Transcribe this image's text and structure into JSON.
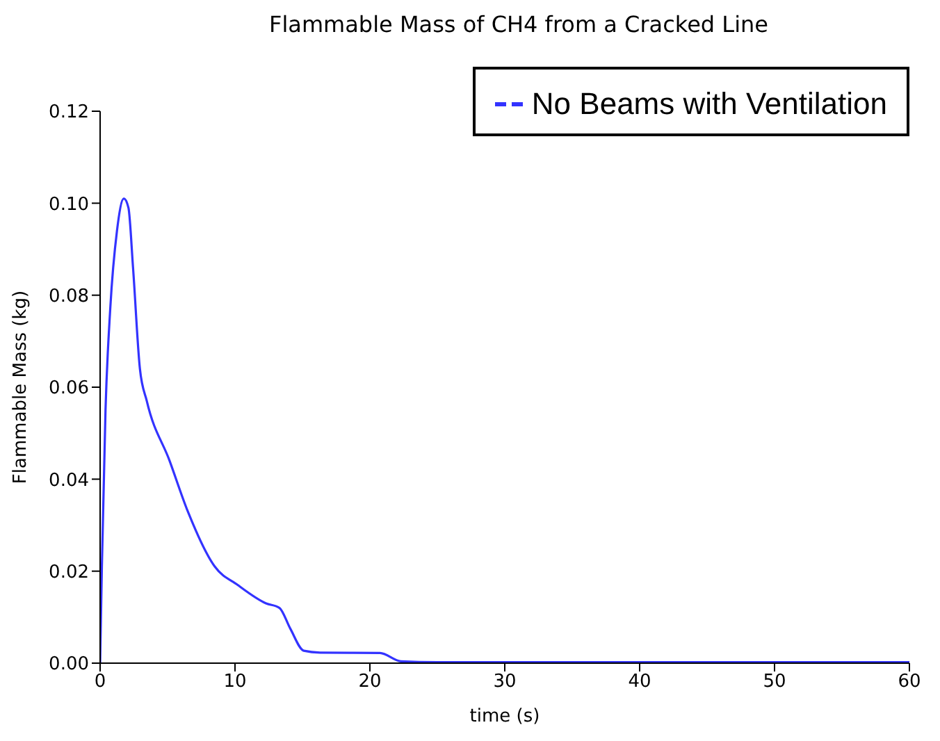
{
  "chart_data": {
    "type": "line",
    "title": "Flammable Mass of CH4 from a Cracked Line",
    "xlabel": "time (s)",
    "ylabel": "Flammable Mass (kg)",
    "x": [
      0,
      0.13,
      0.4,
      0.75,
      1.25,
      1.76,
      2.1,
      2.44,
      2.95,
      3.46,
      5.15,
      6.5,
      8.5,
      10.2,
      12.3,
      13.3,
      14.1,
      15.1,
      16.3,
      20.75,
      22.3,
      25,
      40,
      60
    ],
    "series": [
      {
        "name": "No Beams with Ventilation",
        "color": "#3333ff",
        "values": [
          0,
          0.021,
          0.055,
          0.077,
          0.094,
          0.101,
          0.099,
          0.086,
          0.064,
          0.057,
          0.044,
          0.033,
          0.021,
          0.017,
          0.013,
          0.012,
          0.0075,
          0.0027,
          0.0023,
          0.0022,
          0.0004,
          0.0002,
          0.0002,
          0.0002
        ]
      }
    ],
    "xlim": [
      0,
      60
    ],
    "xticks": [
      0,
      10,
      20,
      30,
      40,
      50,
      60
    ],
    "ylim": [
      0,
      0.12
    ],
    "yticks": [
      {
        "value": 0,
        "label": "0.00"
      },
      {
        "value": 0.02,
        "label": "0.02"
      },
      {
        "value": 0.04,
        "label": "0.04"
      },
      {
        "value": 0.06,
        "label": "0.06"
      },
      {
        "value": 0.08,
        "label": "0.08"
      },
      {
        "value": 0.1,
        "label": "0.10"
      },
      {
        "value": 0.12,
        "label": "0.12"
      }
    ],
    "legend": "top right",
    "grid": false,
    "marker": "none",
    "line_style": "solid"
  }
}
